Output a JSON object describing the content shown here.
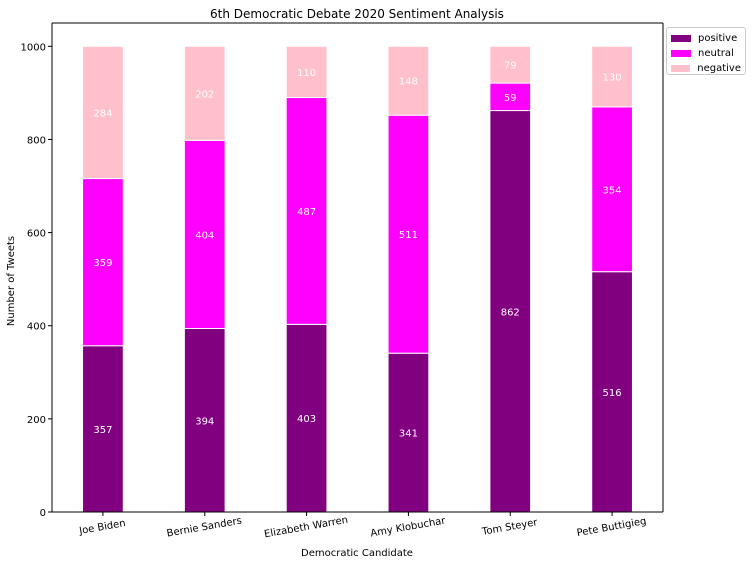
{
  "chart_data": {
    "type": "bar",
    "stacked": true,
    "title": "6th Democratic Debate 2020 Sentiment Analysis",
    "xlabel": "Democratic Candidate",
    "ylabel": "Number of Tweets",
    "ylim": [
      0,
      1050
    ],
    "yticks": [
      0,
      200,
      400,
      600,
      800,
      1000
    ],
    "categories": [
      "Joe Biden",
      "Bernie Sanders",
      "Elizabeth Warren",
      "Amy Klobuchar",
      "Tom Steyer",
      "Pete Buttigieg"
    ],
    "series": [
      {
        "name": "positive",
        "color": "#800080",
        "values": [
          357,
          394,
          403,
          341,
          862,
          516
        ]
      },
      {
        "name": "neutral",
        "color": "#ff00ff",
        "values": [
          359,
          404,
          487,
          511,
          59,
          354
        ]
      },
      {
        "name": "negative",
        "color": "#ffc0cb",
        "values": [
          284,
          202,
          110,
          148,
          79,
          130
        ]
      }
    ],
    "legend_position": "upper-right-outside",
    "grid": false
  }
}
